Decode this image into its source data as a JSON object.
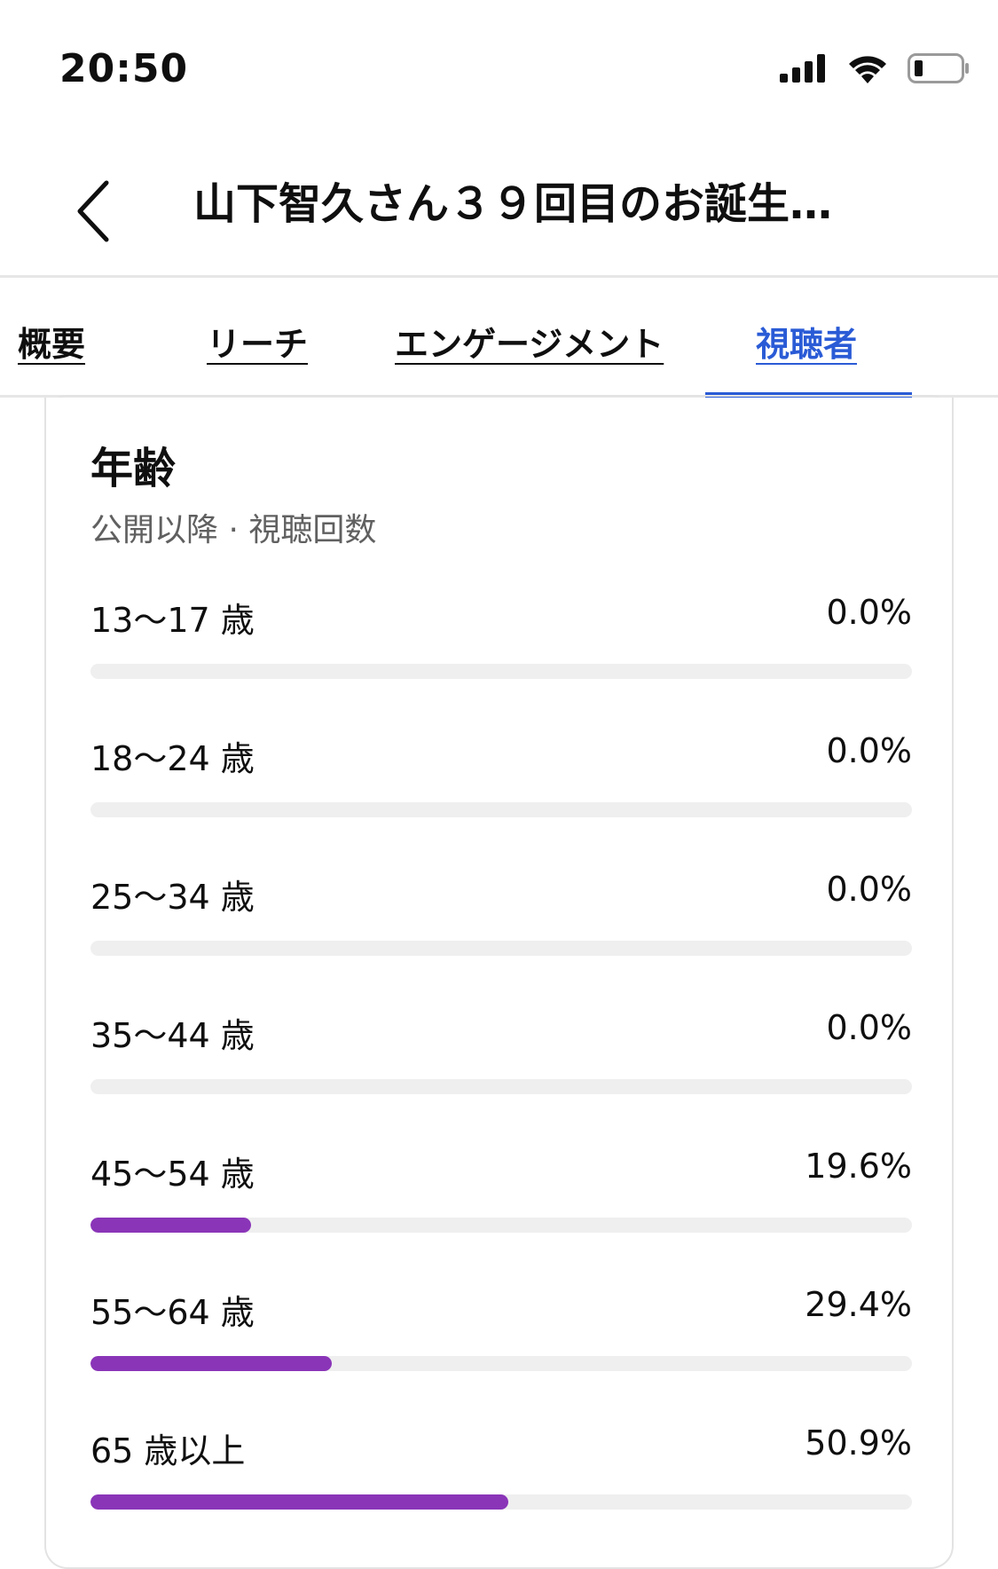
{
  "status_bar": {
    "time": "20:50"
  },
  "header": {
    "title": "山下智久さん３９回目のお誕生…"
  },
  "tabs": [
    {
      "label": "概要",
      "active": false
    },
    {
      "label": "リーチ",
      "active": false
    },
    {
      "label": "エンゲージメント",
      "active": false
    },
    {
      "label": "視聴者",
      "active": true
    }
  ],
  "age_card": {
    "title": "年齢",
    "subtitle": "公開以降 · 視聴回数",
    "bar_color": "#8a35b8",
    "rows": [
      {
        "label": "13〜17 歳",
        "value": "0.0%",
        "percent": 0.0
      },
      {
        "label": "18〜24 歳",
        "value": "0.0%",
        "percent": 0.0
      },
      {
        "label": "25〜34 歳",
        "value": "0.0%",
        "percent": 0.0
      },
      {
        "label": "35〜44 歳",
        "value": "0.0%",
        "percent": 0.0
      },
      {
        "label": "45〜54 歳",
        "value": "19.6%",
        "percent": 19.6
      },
      {
        "label": "55〜64 歳",
        "value": "29.4%",
        "percent": 29.4
      },
      {
        "label": "65 歳以上",
        "value": "50.9%",
        "percent": 50.9
      }
    ]
  },
  "colors": {
    "accent": "#2a5bd6",
    "bar": "#8a35b8",
    "track": "#efefef"
  }
}
